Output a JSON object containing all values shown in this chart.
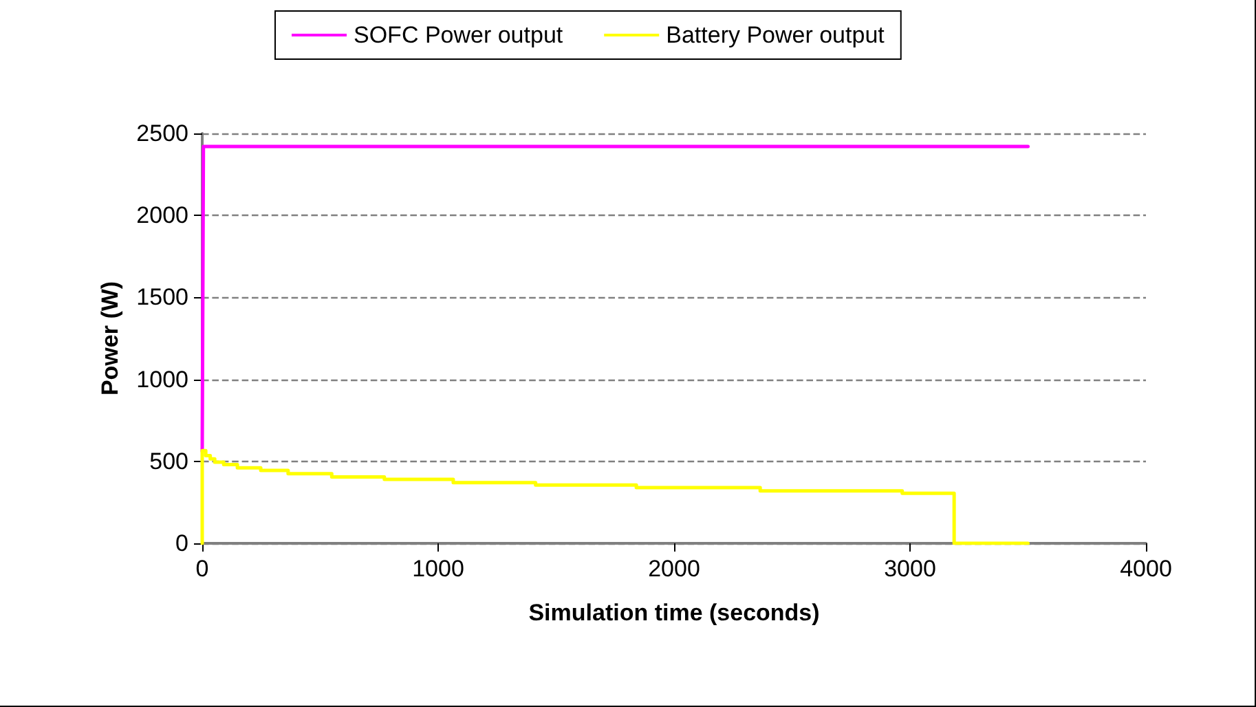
{
  "chart_data": {
    "type": "line",
    "xlabel": "Simulation time (seconds)",
    "ylabel": "Power (W)",
    "xlim": [
      0,
      4000
    ],
    "xticks": [
      0,
      1000,
      2000,
      3000,
      4000
    ],
    "ylim": [
      0,
      2500
    ],
    "yticks": [
      0,
      500,
      1000,
      1500,
      2000,
      2500
    ],
    "grid": "y",
    "legend": "top",
    "marker": "none",
    "series": [
      {
        "name": "SOFC Power output",
        "color": "#ff00ff",
        "type": "line",
        "x": [
          0,
          5,
          3500
        ],
        "values": [
          560,
          2420,
          2420
        ]
      },
      {
        "name": "Battery Power output",
        "color": "#ffff00",
        "type": "step",
        "x": [
          0,
          0,
          15,
          34,
          53,
          91,
          149,
          248,
          364,
          549,
          772,
          1064,
          1413,
          1840,
          2365,
          2967,
          3187,
          3500
        ],
        "values": [
          0,
          565,
          535,
          515,
          495,
          480,
          460,
          445,
          425,
          405,
          390,
          370,
          355,
          340,
          320,
          305,
          0,
          0
        ]
      }
    ]
  }
}
